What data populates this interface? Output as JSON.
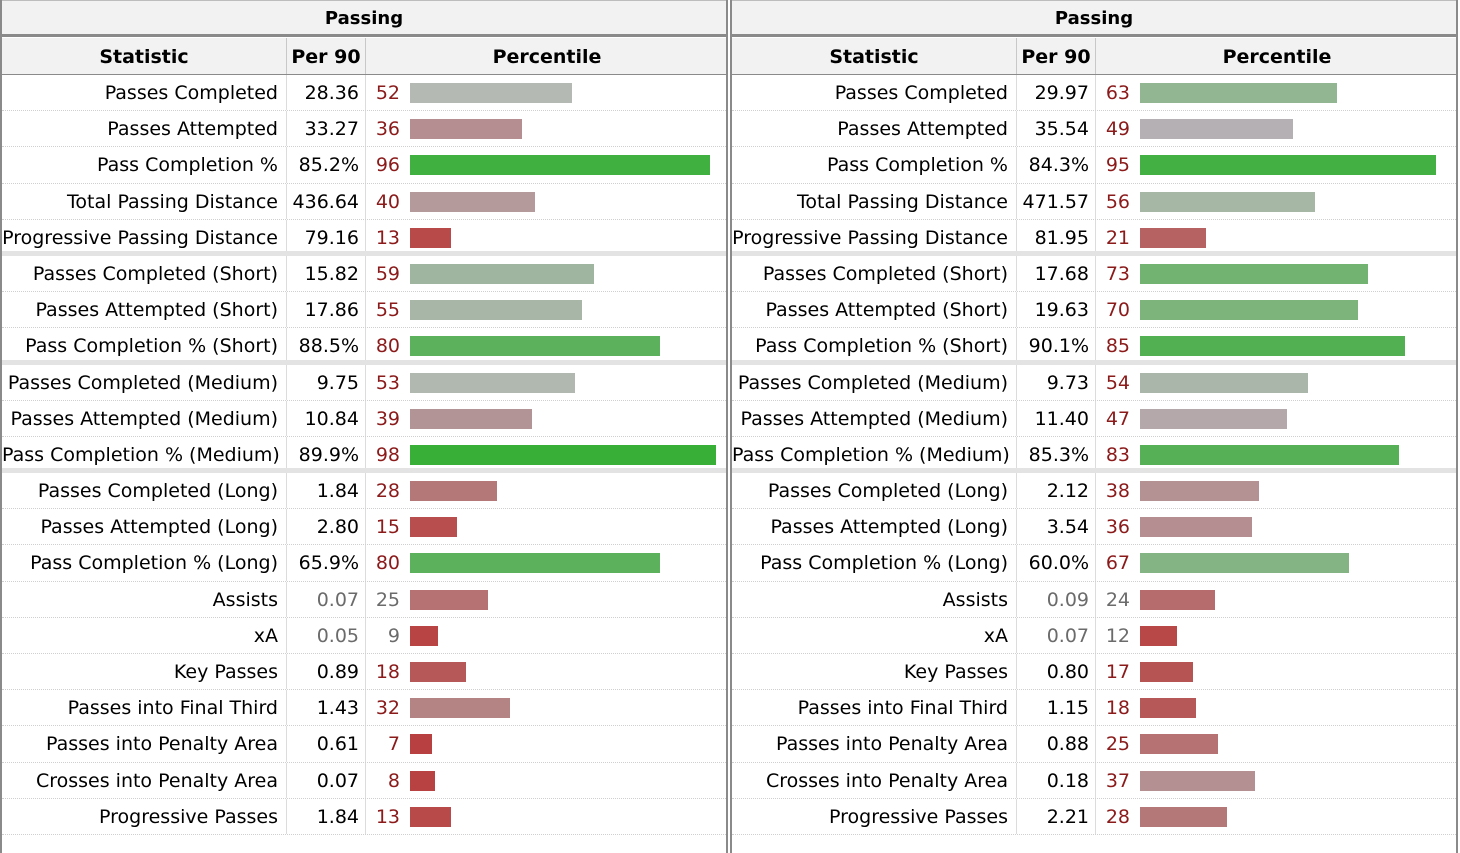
{
  "tables": [
    {
      "title": "Passing",
      "headers": {
        "statistic": "Statistic",
        "per90": "Per 90",
        "percentile": "Percentile"
      },
      "rows": [
        {
          "stat": "Passes Completed",
          "per90": "28.36",
          "pct": "52",
          "pct_value": 52,
          "color": "#b4bab3",
          "sep": false,
          "grey": false
        },
        {
          "stat": "Passes Attempted",
          "per90": "33.27",
          "pct": "36",
          "pct_value": 36,
          "color": "#b48e90",
          "sep": false,
          "grey": false
        },
        {
          "stat": "Pass Completion %",
          "per90": "85.2%",
          "pct": "96",
          "pct_value": 96,
          "color": "#40b040",
          "sep": false,
          "grey": false
        },
        {
          "stat": "Total Passing Distance",
          "per90": "436.64",
          "pct": "40",
          "pct_value": 40,
          "color": "#b49a9b",
          "sep": false,
          "grey": false
        },
        {
          "stat": "Progressive Passing Distance",
          "per90": "79.16",
          "pct": "13",
          "pct_value": 13,
          "color": "#b84a4a",
          "sep": true,
          "grey": false
        },
        {
          "stat": "Passes Completed (Short)",
          "per90": "15.82",
          "pct": "59",
          "pct_value": 59,
          "color": "#9fb59f",
          "sep": false,
          "grey": false
        },
        {
          "stat": "Passes Attempted (Short)",
          "per90": "17.86",
          "pct": "55",
          "pct_value": 55,
          "color": "#a8b6a8",
          "sep": false,
          "grey": false
        },
        {
          "stat": "Pass Completion % (Short)",
          "per90": "88.5%",
          "pct": "80",
          "pct_value": 80,
          "color": "#5cb15c",
          "sep": true,
          "grey": false
        },
        {
          "stat": "Passes Completed (Medium)",
          "per90": "9.75",
          "pct": "53",
          "pct_value": 53,
          "color": "#b0b8b0",
          "sep": false,
          "grey": false
        },
        {
          "stat": "Passes Attempted (Medium)",
          "per90": "10.84",
          "pct": "39",
          "pct_value": 39,
          "color": "#b39496",
          "sep": false,
          "grey": false
        },
        {
          "stat": "Pass Completion % (Medium)",
          "per90": "89.9%",
          "pct": "98",
          "pct_value": 98,
          "color": "#38b038",
          "sep": true,
          "grey": false
        },
        {
          "stat": "Passes Completed (Long)",
          "per90": "1.84",
          "pct": "28",
          "pct_value": 28,
          "color": "#b47878",
          "sep": false,
          "grey": false
        },
        {
          "stat": "Passes Attempted (Long)",
          "per90": "2.80",
          "pct": "15",
          "pct_value": 15,
          "color": "#b84e4e",
          "sep": false,
          "grey": false
        },
        {
          "stat": "Pass Completion % (Long)",
          "per90": "65.9%",
          "pct": "80",
          "pct_value": 80,
          "color": "#5cb15c",
          "sep": false,
          "grey": false
        },
        {
          "stat": "Assists",
          "per90": "0.07",
          "pct": "25",
          "pct_value": 25,
          "color": "#b67172",
          "sep": false,
          "grey": true
        },
        {
          "stat": "xA",
          "per90": "0.05",
          "pct": "9",
          "pct_value": 9,
          "color": "#b84444",
          "sep": false,
          "grey": true
        },
        {
          "stat": "Key Passes",
          "per90": "0.89",
          "pct": "18",
          "pct_value": 18,
          "color": "#b65858",
          "sep": false,
          "grey": false
        },
        {
          "stat": "Passes into Final Third",
          "per90": "1.43",
          "pct": "32",
          "pct_value": 32,
          "color": "#b48485",
          "sep": false,
          "grey": false
        },
        {
          "stat": "Passes into Penalty Area",
          "per90": "0.61",
          "pct": "7",
          "pct_value": 7,
          "color": "#b84040",
          "sep": false,
          "grey": false
        },
        {
          "stat": "Crosses into Penalty Area",
          "per90": "0.07",
          "pct": "8",
          "pct_value": 8,
          "color": "#b84242",
          "sep": false,
          "grey": false
        },
        {
          "stat": "Progressive Passes",
          "per90": "1.84",
          "pct": "13",
          "pct_value": 13,
          "color": "#b84a4a",
          "sep": false,
          "grey": false
        }
      ]
    },
    {
      "title": "Passing",
      "headers": {
        "statistic": "Statistic",
        "per90": "Per 90",
        "percentile": "Percentile"
      },
      "rows": [
        {
          "stat": "Passes Completed",
          "per90": "29.97",
          "pct": "63",
          "pct_value": 63,
          "color": "#92b592",
          "sep": false,
          "grey": false
        },
        {
          "stat": "Passes Attempted",
          "per90": "35.54",
          "pct": "49",
          "pct_value": 49,
          "color": "#b4b0b4",
          "sep": false,
          "grey": false
        },
        {
          "stat": "Pass Completion %",
          "per90": "84.3%",
          "pct": "95",
          "pct_value": 95,
          "color": "#42b042",
          "sep": false,
          "grey": false
        },
        {
          "stat": "Total Passing Distance",
          "per90": "471.57",
          "pct": "56",
          "pct_value": 56,
          "color": "#a6b7a6",
          "sep": false,
          "grey": false
        },
        {
          "stat": "Progressive Passing Distance",
          "per90": "81.95",
          "pct": "21",
          "pct_value": 21,
          "color": "#b66262",
          "sep": true,
          "grey": false
        },
        {
          "stat": "Passes Completed (Short)",
          "per90": "17.68",
          "pct": "73",
          "pct_value": 73,
          "color": "#72b372",
          "sep": false,
          "grey": false
        },
        {
          "stat": "Passes Attempted (Short)",
          "per90": "19.63",
          "pct": "70",
          "pct_value": 70,
          "color": "#7cb47c",
          "sep": false,
          "grey": false
        },
        {
          "stat": "Pass Completion % (Short)",
          "per90": "90.1%",
          "pct": "85",
          "pct_value": 85,
          "color": "#52b052",
          "sep": true,
          "grey": false
        },
        {
          "stat": "Passes Completed (Medium)",
          "per90": "9.73",
          "pct": "54",
          "pct_value": 54,
          "color": "#aab6aa",
          "sep": false,
          "grey": false
        },
        {
          "stat": "Passes Attempted (Medium)",
          "per90": "11.40",
          "pct": "47",
          "pct_value": 47,
          "color": "#b4a8ab",
          "sep": false,
          "grey": false
        },
        {
          "stat": "Pass Completion % (Medium)",
          "per90": "85.3%",
          "pct": "83",
          "pct_value": 83,
          "color": "#56b056",
          "sep": true,
          "grey": false
        },
        {
          "stat": "Passes Completed (Long)",
          "per90": "2.12",
          "pct": "38",
          "pct_value": 38,
          "color": "#b49294",
          "sep": false,
          "grey": false
        },
        {
          "stat": "Passes Attempted (Long)",
          "per90": "3.54",
          "pct": "36",
          "pct_value": 36,
          "color": "#b48e90",
          "sep": false,
          "grey": false
        },
        {
          "stat": "Pass Completion % (Long)",
          "per90": "60.0%",
          "pct": "67",
          "pct_value": 67,
          "color": "#84b384",
          "sep": false,
          "grey": false
        },
        {
          "stat": "Assists",
          "per90": "0.09",
          "pct": "24",
          "pct_value": 24,
          "color": "#b66c6c",
          "sep": false,
          "grey": true
        },
        {
          "stat": "xA",
          "per90": "0.07",
          "pct": "12",
          "pct_value": 12,
          "color": "#b84848",
          "sep": false,
          "grey": true
        },
        {
          "stat": "Key Passes",
          "per90": "0.80",
          "pct": "17",
          "pct_value": 17,
          "color": "#b65454",
          "sep": false,
          "grey": false
        },
        {
          "stat": "Passes into Final Third",
          "per90": "1.15",
          "pct": "18",
          "pct_value": 18,
          "color": "#b65858",
          "sep": false,
          "grey": false
        },
        {
          "stat": "Passes into Penalty Area",
          "per90": "0.88",
          "pct": "25",
          "pct_value": 25,
          "color": "#b67172",
          "sep": false,
          "grey": false
        },
        {
          "stat": "Crosses into Penalty Area",
          "per90": "0.18",
          "pct": "37",
          "pct_value": 37,
          "color": "#b49092",
          "sep": false,
          "grey": false
        },
        {
          "stat": "Progressive Passes",
          "per90": "2.21",
          "pct": "28",
          "pct_value": 28,
          "color": "#b47878",
          "sep": false,
          "grey": false
        }
      ]
    }
  ]
}
